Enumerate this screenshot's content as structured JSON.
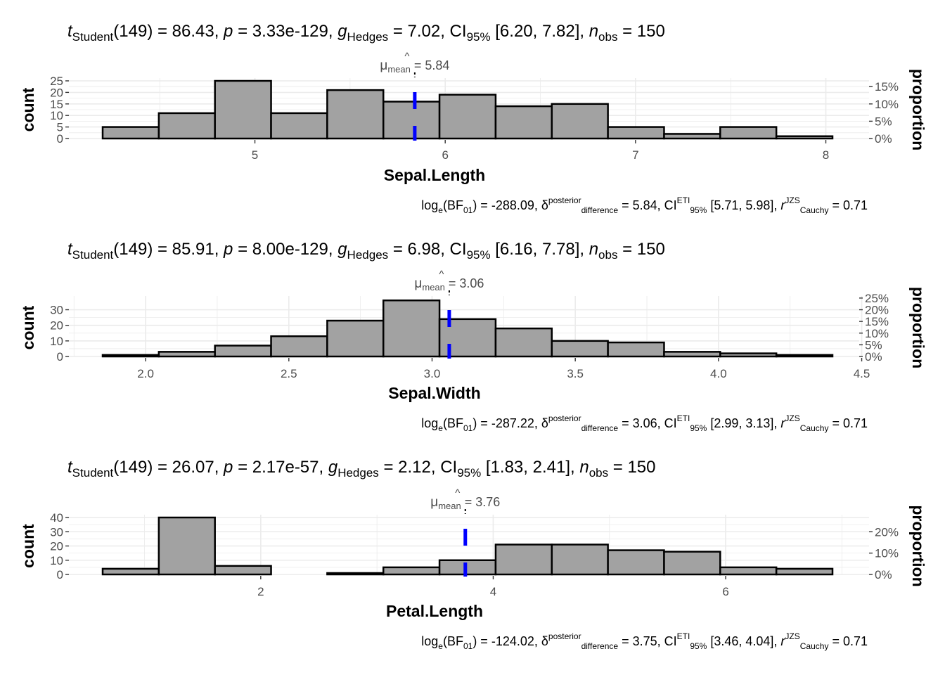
{
  "chart_data": [
    {
      "type": "histogram",
      "variable": "Sepal.Length",
      "xlabel": "Sepal.Length",
      "ylabel": "count",
      "ylabel_right": "proportion",
      "xlim": [
        4.2,
        8.1
      ],
      "xticks": [
        5,
        6,
        7,
        8
      ],
      "xtick_labels": [
        "5",
        "6",
        "7",
        "8"
      ],
      "ylim": [
        0,
        25
      ],
      "yticks": [
        0,
        5,
        10,
        15,
        20,
        25
      ],
      "ytick_labels": [
        "0",
        "5",
        "10",
        "15",
        "20",
        "25"
      ],
      "ytick_labels_right": [
        "0%",
        "5%",
        "10%",
        "15%"
      ],
      "ytick_values_right": [
        0,
        0.05,
        0.1,
        0.15
      ],
      "n_total": 150,
      "bin_start": 4.2,
      "bin_width": 0.295,
      "counts": [
        5,
        11,
        25,
        11,
        21,
        16,
        19,
        14,
        15,
        5,
        2,
        5,
        1
      ],
      "mean": 5.84,
      "mean_label": {
        "prefix": "μ",
        "sub": "mean",
        "value": "= 5.84"
      },
      "subtitle": {
        "stat": "t",
        "stat_sub": "Student",
        "df": "(149) = 86.43,",
        "p": "p",
        "p_val": "= 3.33e-129,",
        "g": "g",
        "g_sub": "Hedges",
        "g_val": "= 7.02, CI",
        "ci_sub": "95%",
        "ci_val": "[6.20, 7.82],",
        "n": "n",
        "n_sub": "obs",
        "n_val": "= 150"
      },
      "caption": {
        "log": "log",
        "log_sub": "e",
        "bf": "(BF",
        "bf_sub": "01",
        "bf_val": ") = -288.09,",
        "delta": "δ",
        "delta_sup": "posterior",
        "delta_sub": "difference",
        "delta_val": "= 5.84, CI",
        "ci_sup": "ETI",
        "ci_sub": "95%",
        "ci_val": "[5.71, 5.98],",
        "r": "r",
        "r_sup": "JZS",
        "r_sub": "Cauchy",
        "r_val": "= 0.71"
      }
    },
    {
      "type": "histogram",
      "variable": "Sepal.Width",
      "xlabel": "Sepal.Width",
      "ylabel": "count",
      "ylabel_right": "proportion",
      "xlim": [
        1.75,
        4.5
      ],
      "xticks": [
        2.0,
        2.5,
        3.0,
        3.5,
        4.0,
        4.5
      ],
      "xtick_labels": [
        "2.0",
        "2.5",
        "3.0",
        "3.5",
        "4.0",
        "4.5"
      ],
      "ylim": [
        0,
        37
      ],
      "yticks": [
        0,
        10,
        20,
        30
      ],
      "ytick_labels": [
        "0",
        "10",
        "20",
        "30"
      ],
      "ytick_labels_right": [
        "0%",
        "5%",
        "10%",
        "15%",
        "20%",
        "25%"
      ],
      "ytick_values_right": [
        0,
        0.05,
        0.1,
        0.15,
        0.2,
        0.25
      ],
      "n_total": 150,
      "bin_start": 1.85,
      "bin_width": 0.196,
      "counts": [
        1,
        3,
        7,
        13,
        23,
        36,
        24,
        18,
        10,
        9,
        3,
        2,
        1
      ],
      "mean": 3.06,
      "mean_label": {
        "prefix": "μ",
        "sub": "mean",
        "value": "= 3.06"
      },
      "subtitle": {
        "stat": "t",
        "stat_sub": "Student",
        "df": "(149) = 85.91,",
        "p": "p",
        "p_val": "= 8.00e-129,",
        "g": "g",
        "g_sub": "Hedges",
        "g_val": "= 6.98, CI",
        "ci_sub": "95%",
        "ci_val": "[6.16, 7.78],",
        "n": "n",
        "n_sub": "obs",
        "n_val": "= 150"
      },
      "caption": {
        "log": "log",
        "log_sub": "e",
        "bf": "(BF",
        "bf_sub": "01",
        "bf_val": ") = -287.22,",
        "delta": "δ",
        "delta_sup": "posterior",
        "delta_sub": "difference",
        "delta_val": "= 3.06, CI",
        "ci_sup": "ETI",
        "ci_sub": "95%",
        "ci_val": "[2.99, 3.13],",
        "r": "r",
        "r_sup": "JZS",
        "r_sub": "Cauchy",
        "r_val": "= 0.71"
      }
    },
    {
      "type": "histogram",
      "variable": "Petal.Length",
      "xlabel": "Petal.Length",
      "ylabel": "count",
      "ylabel_right": "proportion",
      "xlim": [
        0.55,
        7.1
      ],
      "xticks": [
        2,
        4,
        6
      ],
      "xtick_labels": [
        "2",
        "4",
        "6"
      ],
      "ylim": [
        0,
        40
      ],
      "yticks": [
        0,
        10,
        20,
        30,
        40
      ],
      "ytick_labels": [
        "0",
        "10",
        "20",
        "30",
        "40"
      ],
      "ytick_labels_right": [
        "0%",
        "10%",
        "20%"
      ],
      "ytick_values_right": [
        0,
        0.1,
        0.2
      ],
      "n_total": 150,
      "bin_start": 0.64,
      "bin_width": 0.483,
      "counts": [
        4,
        40,
        6,
        0,
        1,
        5,
        10,
        21,
        21,
        17,
        16,
        5,
        4
      ],
      "mean": 3.76,
      "mean_label": {
        "prefix": "μ",
        "sub": "mean",
        "value": "= 3.76"
      },
      "subtitle": {
        "stat": "t",
        "stat_sub": "Student",
        "df": "(149) = 26.07,",
        "p": "p",
        "p_val": "= 2.17e-57,",
        "g": "g",
        "g_sub": "Hedges",
        "g_val": "= 2.12, CI",
        "ci_sub": "95%",
        "ci_val": "[1.83, 2.41],",
        "n": "n",
        "n_sub": "obs",
        "n_val": "= 150"
      },
      "caption": {
        "log": "log",
        "log_sub": "e",
        "bf": "(BF",
        "bf_sub": "01",
        "bf_val": ") = -124.02,",
        "delta": "δ",
        "delta_sup": "posterior",
        "delta_sub": "difference",
        "delta_val": "= 3.75, CI",
        "ci_sup": "ETI",
        "ci_sub": "95%",
        "ci_val": "[3.46, 4.04],",
        "r": "r",
        "r_sup": "JZS",
        "r_sub": "Cauchy",
        "r_val": "= 0.71"
      }
    }
  ],
  "colors": {
    "bar_fill": "#a2a2a2",
    "bar_stroke": "#000000",
    "grid": "#ebebeb",
    "mean_line": "#0000ff",
    "tick_text": "#4d4d4d"
  }
}
